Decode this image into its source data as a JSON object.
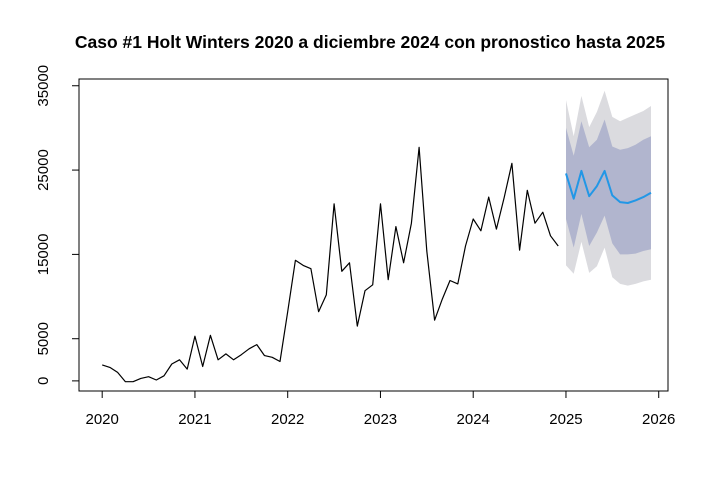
{
  "chart_data": {
    "type": "line",
    "title": "Caso #1 Holt Winters 2020 a diciembre 2024 con pronostico hasta 2025",
    "xlabel": "",
    "ylabel": "",
    "xlim": [
      2019.75,
      2026.1
    ],
    "ylim": [
      -1200,
      35800
    ],
    "x_ticks": [
      2020,
      2021,
      2022,
      2023,
      2024,
      2025,
      2026
    ],
    "y_ticks": [
      0,
      5000,
      15000,
      25000,
      35000
    ],
    "grid": false,
    "legend": "none",
    "series": [
      {
        "role": "observed",
        "color": "#000000",
        "x_start": 2020,
        "x_step": 0.08333333,
        "values": [
          1900,
          1600,
          1000,
          -100,
          -100,
          300,
          500,
          100,
          600,
          2000,
          2500,
          1400,
          5300,
          1700,
          5400,
          2500,
          3200,
          2500,
          3100,
          3800,
          4300,
          3000,
          2800,
          2300,
          8200,
          14300,
          13700,
          13300,
          8200,
          10200,
          21000,
          13000,
          14000,
          6500,
          10700,
          11400,
          21000,
          12000,
          18300,
          14000,
          18700,
          27700,
          15400,
          7200,
          9700,
          11900,
          11500,
          16000,
          19200,
          17800,
          21800,
          18000,
          21700,
          25800,
          15500,
          22600,
          18700,
          20000,
          17200,
          16000
        ]
      },
      {
        "role": "forecast",
        "color": "#2297E6",
        "x_start": 2025,
        "x_step": 0.08333333,
        "values": [
          24600,
          21600,
          24900,
          21900,
          23100,
          24900,
          22000,
          21200,
          21100,
          21400,
          21800,
          22300
        ],
        "lower_95": [
          13700,
          12700,
          16500,
          12800,
          13600,
          15800,
          12300,
          11500,
          11300,
          11500,
          11800,
          12000
        ],
        "upper_95": [
          33300,
          29000,
          33800,
          30100,
          31900,
          34400,
          31300,
          30800,
          31200,
          31600,
          32000,
          32600
        ],
        "lower_80": [
          19200,
          15800,
          19800,
          16000,
          17600,
          19600,
          16300,
          15000,
          15000,
          15100,
          15400,
          15600
        ],
        "upper_80": [
          30000,
          26700,
          30800,
          27700,
          28600,
          31000,
          27800,
          27400,
          27600,
          28000,
          28600,
          29000
        ]
      }
    ],
    "band_colors": {
      "outer": "#DBDBDF",
      "inner": "#B1B5CE"
    }
  }
}
